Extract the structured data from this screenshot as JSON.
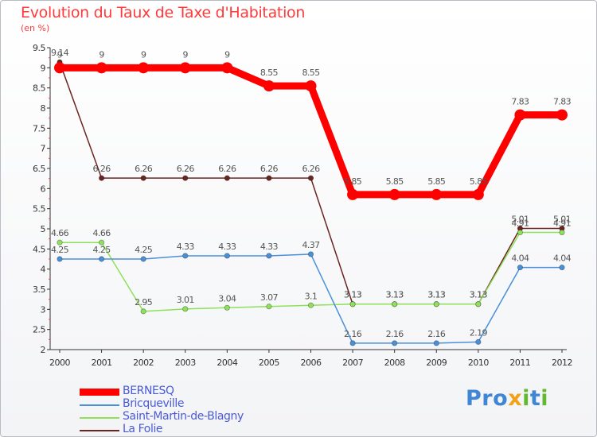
{
  "title": "Evolution du Taux de Taxe d'Habitation",
  "subtitle": "(en %)",
  "logo": {
    "text": "Proxiti",
    "colors": [
      "#3f86d4",
      "#f0a21a",
      "#62b82e"
    ]
  },
  "chart_data": {
    "type": "line",
    "title": "Evolution du Taux de Taxe d'Habitation",
    "subtitle": "(en %)",
    "xlabel": "",
    "ylabel": "",
    "x": [
      "2000",
      "2001",
      "2002",
      "2003",
      "2004",
      "2005",
      "2006",
      "2007",
      "2008",
      "2009",
      "2010",
      "2011",
      "2012"
    ],
    "ylim": [
      2,
      9.5
    ],
    "yticks": [
      "2",
      "2.5",
      "3",
      "3.5",
      "4",
      "4.5",
      "5",
      "5.5",
      "6",
      "6.5",
      "7",
      "7.5",
      "8",
      "8.5",
      "9",
      "9.5"
    ],
    "grid": false,
    "legend_position": "bottom-left",
    "series": [
      {
        "name": "La Folie",
        "color": "#6b2420",
        "values": [
          9.14,
          6.26,
          6.26,
          6.26,
          6.26,
          6.26,
          6.26,
          3.13,
          3.13,
          3.13,
          3.13,
          5.01,
          5.01
        ],
        "labels": [
          "9.14",
          "6.26",
          "6.26",
          "6.26",
          "6.26",
          "6.26",
          "6.26",
          "3.13",
          "3.13",
          "3.13",
          "3.13",
          "5.01",
          "5.01"
        ]
      },
      {
        "name": "Saint-Martin-de-Blagny",
        "color": "#8fe05a",
        "values": [
          4.66,
          4.66,
          2.95,
          3.01,
          3.04,
          3.07,
          3.1,
          3.13,
          3.13,
          3.13,
          3.13,
          4.91,
          4.91
        ],
        "labels": [
          "4.66",
          "4.66",
          "2.95",
          "3.01",
          "3.04",
          "3.07",
          "3.1",
          "3.13",
          "3.13",
          "3.13",
          "3.13",
          "4.91",
          "4.91"
        ]
      },
      {
        "name": "Bricqueville",
        "color": "#4a90d9",
        "values": [
          4.25,
          4.25,
          4.25,
          4.33,
          4.33,
          4.33,
          4.37,
          2.16,
          2.16,
          2.16,
          2.19,
          4.04,
          4.04
        ],
        "labels": [
          "4.25",
          "4.25",
          "4.25",
          "4.33",
          "4.33",
          "4.33",
          "4.37",
          "2.16",
          "2.16",
          "2.16",
          "2.19",
          "4.04",
          "4.04"
        ]
      },
      {
        "name": "BERNESQ",
        "color": "#ff0000",
        "values": [
          9,
          9,
          9,
          9,
          9,
          8.55,
          8.55,
          5.85,
          5.85,
          5.85,
          5.85,
          7.83,
          7.83
        ],
        "labels": [
          "9",
          "9",
          "9",
          "9",
          "9",
          "8.55",
          "8.55",
          "5.85",
          "5.85",
          "5.85",
          "5.85",
          "7.83",
          "7.83"
        ]
      }
    ]
  },
  "legend": [
    {
      "name": "BERNESQ",
      "color": "#ff0000"
    },
    {
      "name": "Bricqueville",
      "color": "#4a90d9"
    },
    {
      "name": "Saint-Martin-de-Blagny",
      "color": "#8fe05a"
    },
    {
      "name": "La Folie",
      "color": "#6b2420"
    }
  ]
}
